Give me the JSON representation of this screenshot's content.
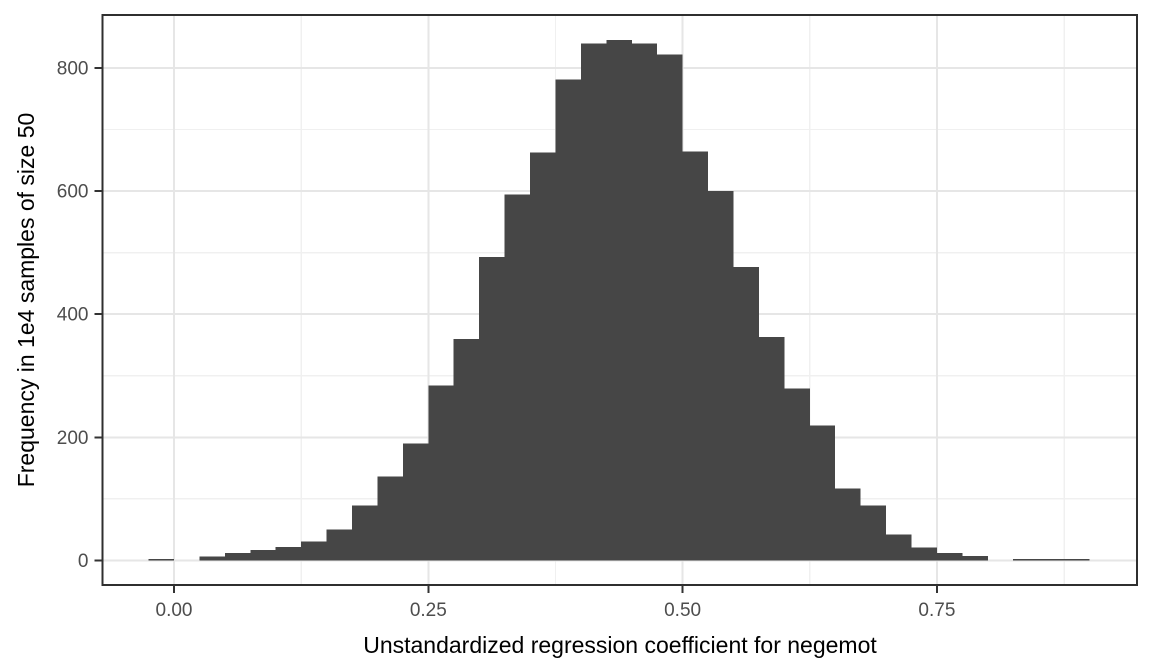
{
  "chart_data": {
    "type": "bar",
    "subtype": "histogram",
    "title": "",
    "xlabel": "Unstandardized regression coefficient for negemot",
    "ylabel": "Frequency in 1e4 samples of size 50",
    "bin_start": -0.025,
    "bin_width": 0.025,
    "frequencies": [
      2,
      0,
      6,
      12,
      17,
      22,
      31,
      50,
      89,
      136,
      190,
      284,
      360,
      493,
      594,
      663,
      781,
      840,
      845,
      840,
      822,
      664,
      600,
      477,
      363,
      279,
      219,
      117,
      89,
      42,
      21,
      12,
      7,
      0,
      2,
      2,
      2
    ],
    "xlim": [
      -0.0703,
      0.9467
    ],
    "ylim": [
      -40,
      886
    ],
    "x_major_ticks": [
      0,
      0.25,
      0.5,
      0.75
    ],
    "x_tick_labels": [
      "0.00",
      "0.25",
      "0.50",
      "0.75"
    ],
    "x_minor_ticks": [
      0.125,
      0.375,
      0.625,
      0.875
    ],
    "y_major_ticks": [
      0,
      200,
      400,
      600,
      800
    ],
    "y_tick_labels": [
      "0",
      "200",
      "400",
      "600",
      "800"
    ],
    "y_minor_ticks": [
      100,
      300,
      500,
      700
    ],
    "grid": true,
    "legend": "none",
    "colors": {
      "bar_fill": "#464646",
      "grid_major": "#E6E6E6",
      "grid_minor": "#F0F0F0",
      "panel_border": "#2F2F2F",
      "tick_mark": "#333333",
      "tick_label": "#4D4D4D",
      "axis_title": "#000000",
      "panel_background": "#FFFFFF"
    }
  }
}
